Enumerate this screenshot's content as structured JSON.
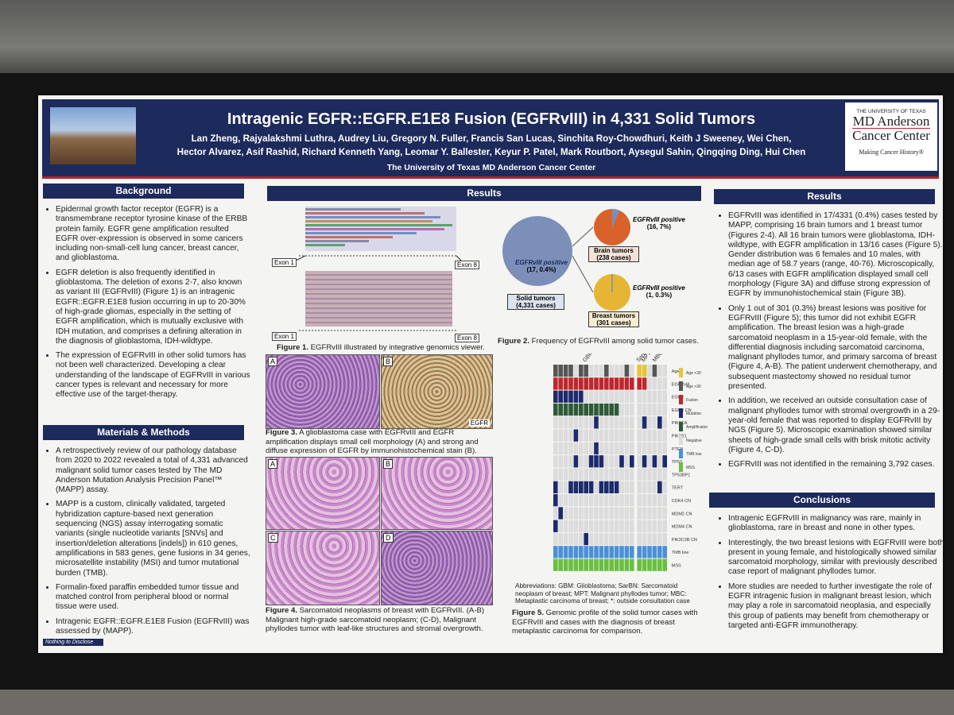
{
  "header": {
    "logo_alt": "",
    "title": "Intragenic EGFR::EGFR.E1E8 Fusion (EGFRvIII) in 4,331 Solid Tumors",
    "authors_line1": "Lan Zheng, Rajyalakshmi Luthra, Audrey Liu, Gregory N. Fuller, Francis San Lucas, Sinchita Roy-Chowdhuri, Keith J Sweeney, Wei Chen,",
    "authors_line2": "Hector Alvarez, Asif Rashid, Richard Kenneth Yang, Leomar Y. Ballester, Keyur P. Patel, Mark Routbort, Aysegul Sahin, Qingqing Ding, Hui Chen",
    "affiliation": "The University of Texas MD Anderson Cancer Center",
    "brand_top": "THE UNIVERSITY OF TEXAS",
    "brand_name1": "MD Anderson",
    "brand_name2": "Cancer Center",
    "brand_tagline": "Making Cancer History®"
  },
  "background": {
    "heading": "Background",
    "bullets": [
      "Epidermal growth factor receptor (EGFR) is a transmembrane receptor tyrosine kinase of the ERBB protein family. EGFR gene amplification resulted EGFR over-expression is observed in some cancers including non-small-cell lung cancer, breast cancer, and glioblastoma.",
      "EGFR deletion is also frequently identified in glioblastoma. The deletion of exons 2-7, also known as variant III (EGFRvIII) (Figure 1) is an intragenic EGFR::EGFR.E1E8 fusion occurring in up to 20-30% of high-grade gliomas, especially in the setting of EGFR amplification, which is mutually exclusive with IDH mutation, and comprises a defining alteration in the diagnosis of glioblastoma, IDH-wildtype.",
      "The expression of EGFRvIII in other solid tumors has not been well characterized. Developing a clear understanding of the landscape of EGFRvIII in various cancer types is relevant and necessary for more effective use of the target-therapy."
    ]
  },
  "methods": {
    "heading": "Materials & Methods",
    "bullets": [
      "A retrospectively review of our pathology database from 2020 to 2022 revealed a total of 4,331 advanced malignant solid tumor cases tested by The MD Anderson Mutation Analysis Precision Panel™ (MAPP) assay.",
      "MAPP is a custom, clinically validated, targeted hybridization capture-based next generation sequencing (NGS) assay interrogating somatic variants (single nucleotide variants [SNVs] and insertion/deletion alterations [indels]) in 610 genes, amplifications in 583 genes, gene fusions in 34 genes, microsatellite instability (MSI) and tumor mutational burden (TMB).",
      "Formalin-fixed paraffin embedded tumor tissue and matched control from peripheral blood or normal tissue were used.",
      "Intragenic EGFR::EGFR.E1E8 Fusion (EGFRvIII) was assessed by (MAPP)."
    ]
  },
  "results_figures": {
    "heading": "Results",
    "figure1": {
      "exon_left_top": "Exon 1",
      "exon_right_top": "Exon 8",
      "exon_left_bottom": "Exon 1",
      "exon_right_bottom": "Exon 8",
      "label": "Figure 1.",
      "caption": "EGFRvIII illustrated by integrative genomics viewer."
    },
    "figure2": {
      "solid_positive": "EGFRvIII positive",
      "solid_positive_count": "(17, 0.4%)",
      "solid_label": "Solid tumors",
      "solid_cases": "(4,331 cases)",
      "brain_positive": "EGFRvIII positive",
      "brain_positive_count": "(16, 7%)",
      "brain_label": "Brain tumors",
      "brain_cases": "(238 cases)",
      "breast_positive": "EGFRvIII positive",
      "breast_positive_count": "(1, 0.3%)",
      "breast_label": "Breast tumors",
      "breast_cases": "(301 cases)",
      "label": "Figure 2.",
      "caption": "Frequency of EGFRvIII among solid tumor cases."
    },
    "figure3": {
      "panel_a": "A",
      "panel_b": "B",
      "stain": "EGFR",
      "label": "Figure 3.",
      "caption": "A glioblastoma case with EGFRvIII and EGFR amplification displays small cell morphology (A) and strong and diffuse expression of EGFR by immunohistochemical stain (B)."
    },
    "figure4": {
      "panel_a": "A",
      "panel_b": "B",
      "panel_c": "C",
      "panel_d": "D",
      "label": "Figure 4.",
      "caption": "Sarcomatoid neoplasms of breast with EGFRvIII. (A-B) Malignant high-grade sarcomatoid neoplasm; (C-D), Malignant phyllodes tumor with leaf-like structures and stromal overgrowth."
    },
    "figure5": {
      "columns": [
        "GBM",
        "SarBN",
        "MPT*",
        "MBC"
      ],
      "rows": [
        "Age",
        "EGFRvIII",
        "EGFR",
        "EGFR CN",
        "PIK3CA",
        "PIK3R1",
        "PTEN",
        "TP53",
        "TP53BP1",
        "TERT",
        "CDK4 CN",
        "MDM2 CN",
        "MDM4 CN",
        "PIK3C2B CN",
        "TMB low",
        "MSS"
      ],
      "legend": [
        "Age <30",
        "Age >30",
        "Fusion",
        "Mutation",
        "Amplification",
        "Negative",
        "TMB low",
        "MSS"
      ],
      "abbreviations": "Abbreviations: GBM: Glioblastoma; SarBN: Sarcomatoid neoplasm of breast; MPT: Malignant phyllodes tumor; MBC: Metaplastic carcinoma of breast; *: outside consultation case",
      "label": "Figure 5.",
      "caption": "Genomic profile of the solid tumor cases with EGFRvIII and cases with the diagnosis of breast metaplastic carcinoma for comparison."
    }
  },
  "results": {
    "heading": "Results",
    "bullets": [
      "EGFRvIII was identified in 17/4331 (0.4%) cases tested by MAPP, comprising 16 brain tumors and 1 breast tumor (Figures 2-4). All 16 brain tumors were glioblastoma, IDH-wildtype, with EGFR amplification in 13/16 cases (Figure 5). Gender distribution was 6 females and 10 males, with median age of 58.7 years (range, 40-76). Microscopically, 6/13 cases with EGFR amplification displayed small cell morphology (Figure 3A) and diffuse strong expression of EGFR by immunohistochemical stain (Figure 3B).",
      "Only 1 out of 301 (0.3%) breast lesions was positive for EGFRvIII (Figure 5); this tumor did not exhibit EGFR amplification. The breast lesion was a high-grade sarcomatoid neoplasm in a 15-year-old female, with the differential diagnosis including sarcomatoid carcinoma, malignant phyllodes tumor, and primary sarcoma of breast (Figure 4, A-B). The patient underwent chemotherapy, and subsequent mastectomy showed no residual tumor presented.",
      "In addition, we received an outside consultation case of malignant phyllodes tumor with stromal overgrowth in a 29-year-old female that was reported to display EGFRvIII by NGS (Figure 5). Microscopic examination showed similar sheets of high-grade small cells with brisk mitotic activity (Figure 4, C-D).",
      "EGFRvIII was not identified in the remaining 3,792 cases."
    ]
  },
  "conclusions": {
    "heading": "Conclusions",
    "bullets": [
      "Intragenic EGFRvIII in malignancy was rare, mainly in glioblastoma, rare in breast and none in other types.",
      "Interestingly, the two breast lesions with EGFRvIII were both present in young female, and histologically showed similar sarcomatoid morphology, similar with previously described case report of malignant phyllodes tumor.",
      "More studies are needed to further investigate the role of EGFR intragenic fusion in malignant breast lesion, which may play a role in sarcomatoid neoplasia, and especially this group of patients may benefit from chemotherapy or targeted anti-EGFR immunotherapy."
    ]
  },
  "footer": {
    "disclosure": "Nothing to Disclose"
  }
}
